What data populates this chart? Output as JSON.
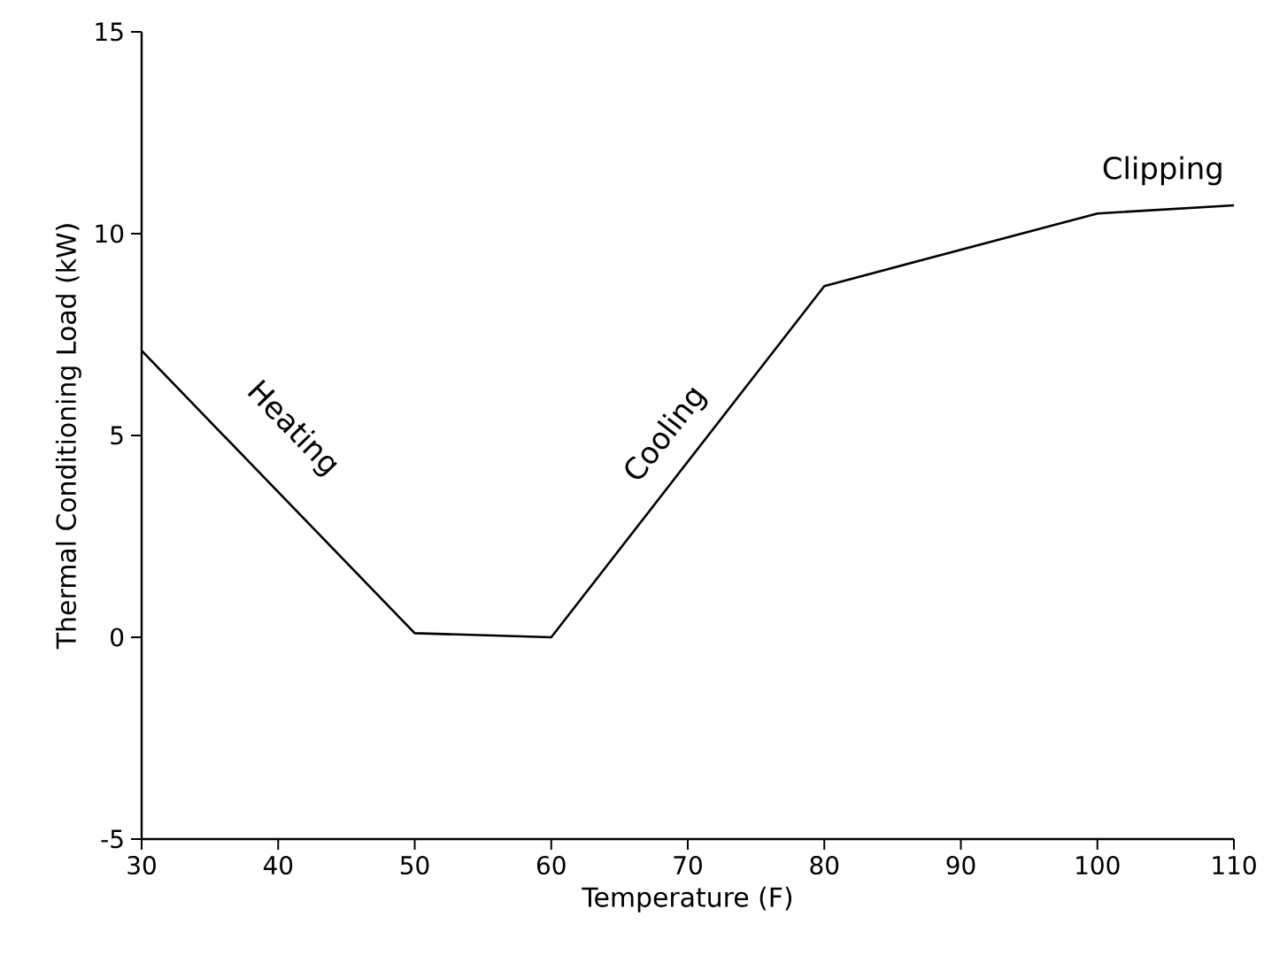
{
  "chart_data": {
    "type": "line",
    "xlabel": "Temperature (F)",
    "ylabel": "Thermal Conditioning Load (kW)",
    "x": [
      30,
      50,
      60,
      80,
      100,
      110
    ],
    "values": [
      7.1,
      0.1,
      0.0,
      8.7,
      10.5,
      10.7
    ],
    "color": "#000000",
    "xlim": [
      30,
      110
    ],
    "ylim": [
      -5,
      15
    ],
    "xticks": [
      30,
      40,
      50,
      60,
      70,
      80,
      90,
      100,
      110
    ],
    "yticks": [
      -5,
      0,
      5,
      10,
      15
    ],
    "annotations": [
      "Heating",
      "Cooling",
      "Clipping"
    ]
  }
}
